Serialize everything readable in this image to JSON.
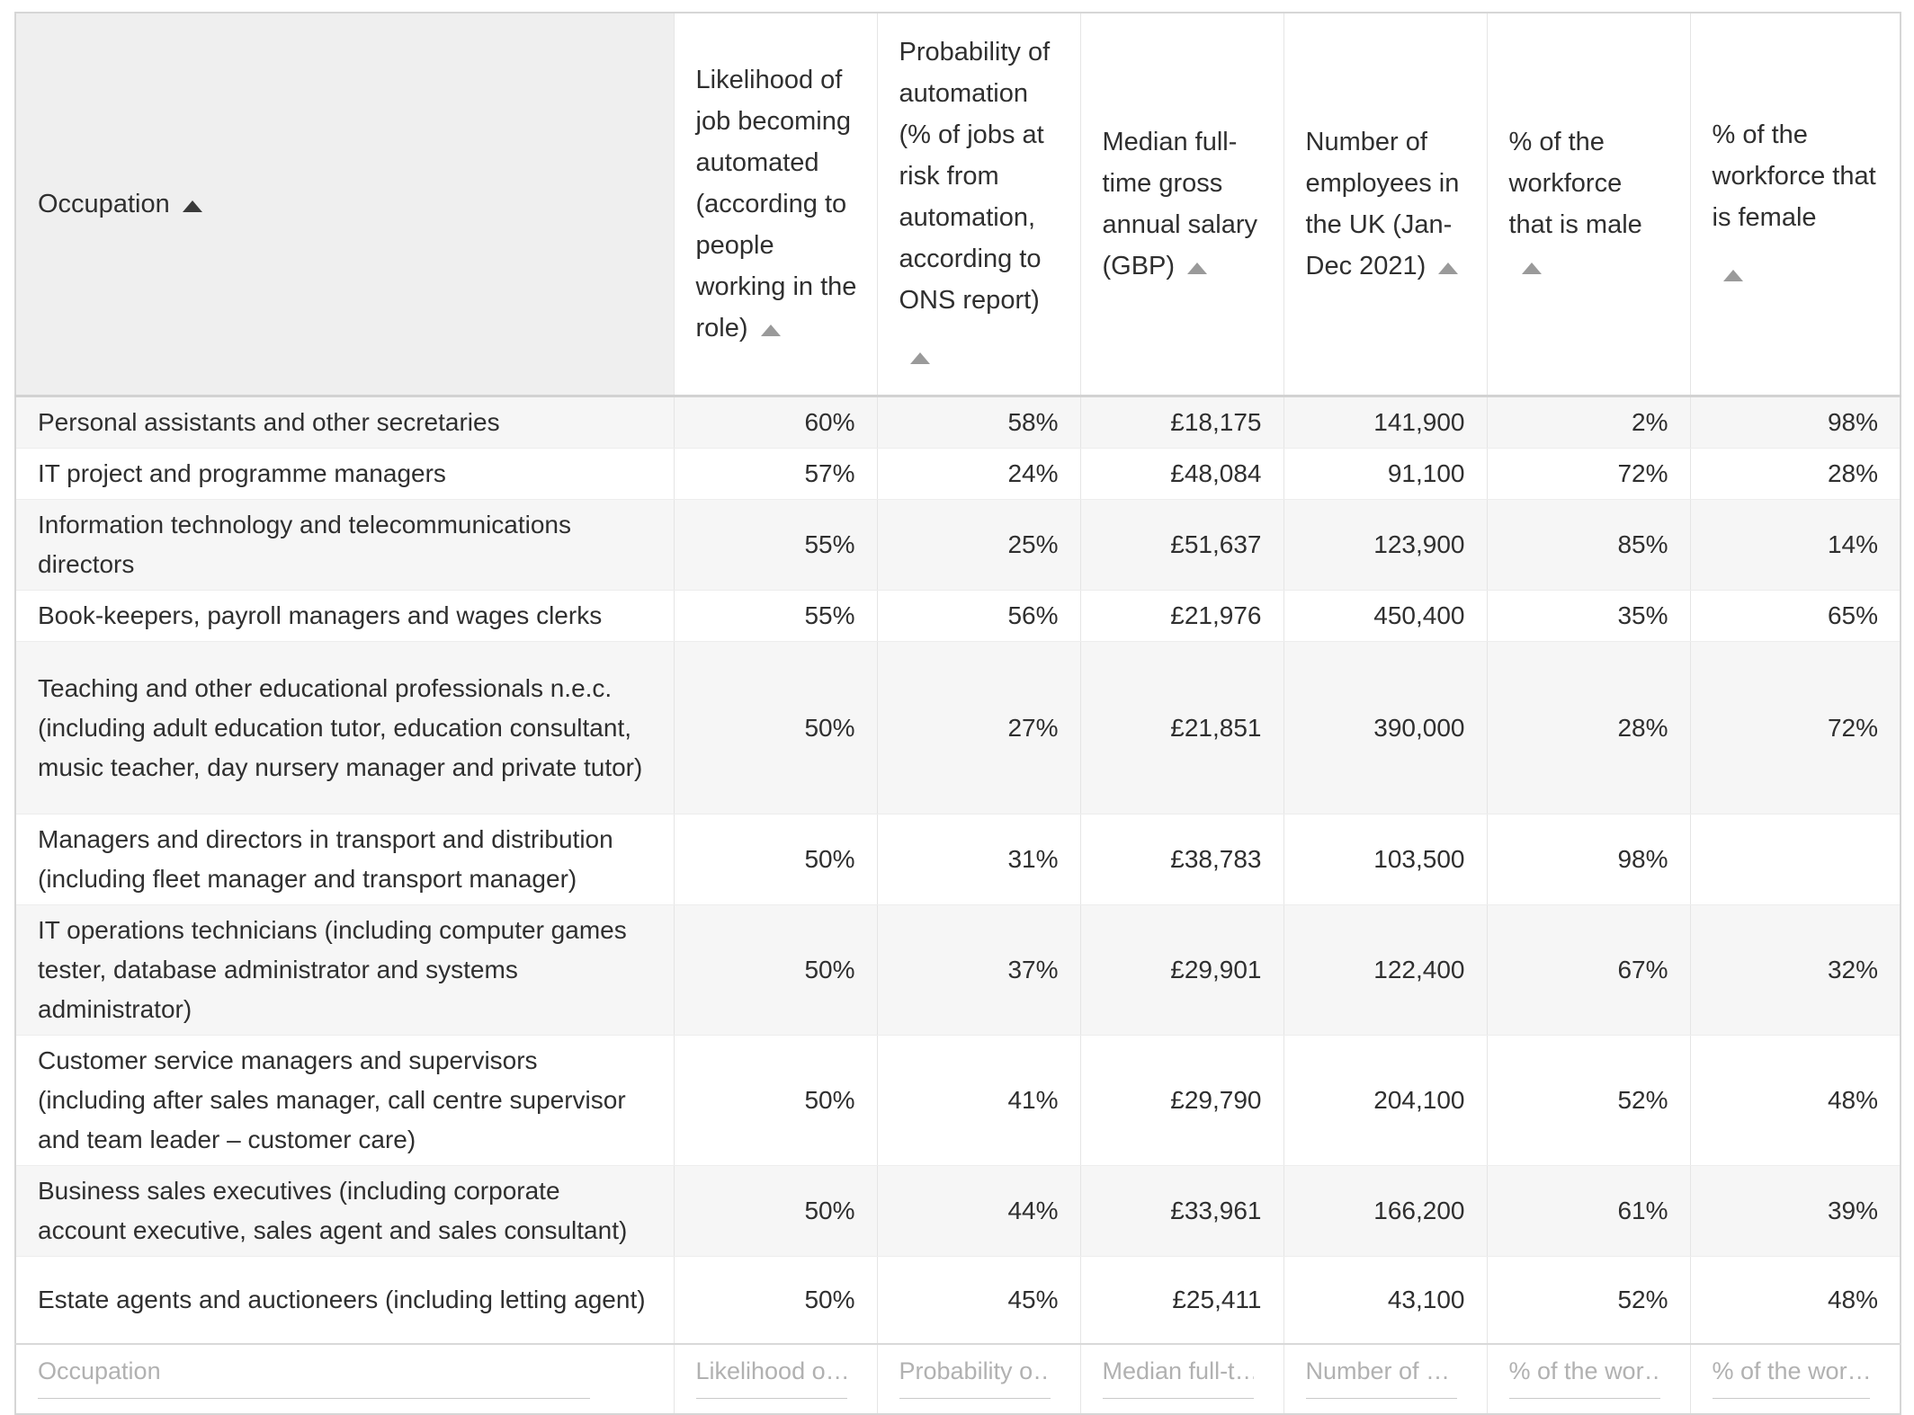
{
  "colors": {
    "header_first_bg": "#efefef",
    "row_stripe_bg": "#f6f6f6",
    "grid_border": "#e5e5e5",
    "outer_border": "#d6d6d6",
    "text": "#2f2f2f",
    "sort_arrow_active": "#3a3a3a",
    "sort_arrow_inactive": "#9a9a9a",
    "placeholder_text": "#b1b1b1"
  },
  "table": {
    "columns": [
      {
        "key": "occupation",
        "label": "Occupation",
        "sort_active": true,
        "arrow_own_line": false,
        "filter_placeholder": "Occupation"
      },
      {
        "key": "likelihood",
        "label": "Likelihood of job becoming automated (according to people working in the role)",
        "sort_active": false,
        "arrow_own_line": false,
        "filter_placeholder": "Likelihood o…"
      },
      {
        "key": "probability",
        "label": "Probability of automation (% of jobs at risk from automation, according to ONS report)",
        "sort_active": false,
        "arrow_own_line": true,
        "filter_placeholder": "Probability o…"
      },
      {
        "key": "salary",
        "label": "Median full-time gross annual salary (GBP)",
        "sort_active": false,
        "arrow_own_line": false,
        "filter_placeholder": "Median full-t…"
      },
      {
        "key": "employees",
        "label": "Number of employees in the UK (Jan-Dec 2021)",
        "sort_active": false,
        "arrow_own_line": false,
        "filter_placeholder": "Number of …"
      },
      {
        "key": "male",
        "label": "% of the workforce that is male",
        "sort_active": false,
        "arrow_own_line": false,
        "filter_placeholder": "% of the wor…"
      },
      {
        "key": "female",
        "label": "% of the workforce that is female",
        "sort_active": false,
        "arrow_own_line": true,
        "filter_placeholder": "% of the wor…"
      }
    ],
    "rows": [
      [
        "Personal assistants and other secretaries",
        "60%",
        "58%",
        "£18,175",
        "141,900",
        "2%",
        "98%"
      ],
      [
        "IT project and programme managers",
        "57%",
        "24%",
        "£48,084",
        "91,100",
        "72%",
        "28%"
      ],
      [
        "Information technology and telecommunications directors",
        "55%",
        "25%",
        "£51,637",
        "123,900",
        "85%",
        "14%"
      ],
      [
        "Book-keepers, payroll managers and wages clerks",
        "55%",
        "56%",
        "£21,976",
        "450,400",
        "35%",
        "65%"
      ],
      [
        "Teaching and other educational professionals n.e.c. (including adult education tutor, education consultant, music teacher, day nursery manager and private tutor)",
        "50%",
        "27%",
        "£21,851",
        "390,000",
        "28%",
        "72%"
      ],
      [
        "Managers and directors in transport and distribution (including fleet manager and transport manager)",
        "50%",
        "31%",
        "£38,783",
        "103,500",
        "98%",
        ""
      ],
      [
        "IT operations technicians (including computer games tester, database administrator and systems administrator)",
        "50%",
        "37%",
        "£29,901",
        "122,400",
        "67%",
        "32%"
      ],
      [
        "Customer service managers and supervisors (including after sales manager, call centre supervisor and team leader – customer care)",
        "50%",
        "41%",
        "£29,790",
        "204,100",
        "52%",
        "48%"
      ],
      [
        "Business sales executives (including corporate account executive, sales agent and sales consultant)",
        "50%",
        "44%",
        "£33,961",
        "166,200",
        "61%",
        "39%"
      ],
      [
        "Estate agents and auctioneers (including letting agent)",
        "50%",
        "45%",
        "£25,411",
        "43,100",
        "52%",
        "48%"
      ]
    ]
  }
}
